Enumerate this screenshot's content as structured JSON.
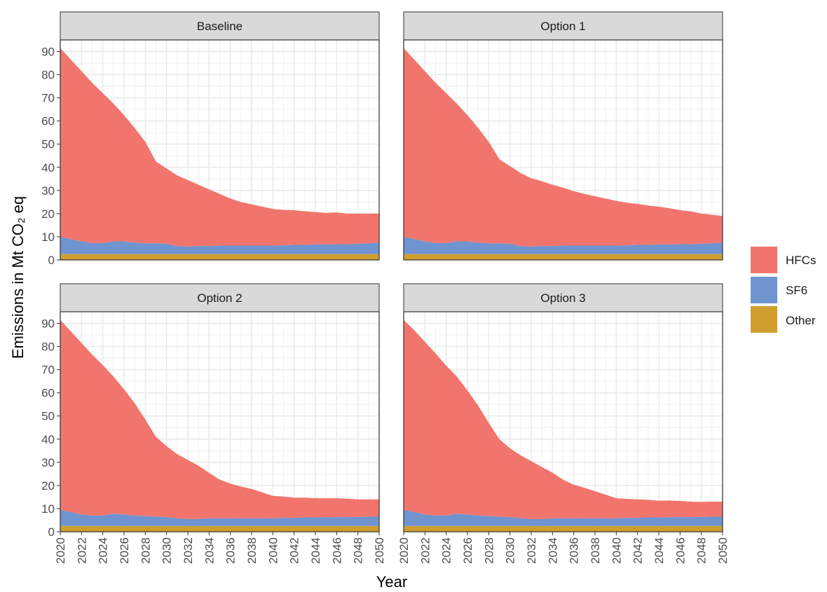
{
  "chart_data": {
    "type": "area",
    "stacked": true,
    "facets": [
      "Baseline",
      "Option 1",
      "Option 2",
      "Option 3"
    ],
    "x": [
      2020,
      2021,
      2022,
      2023,
      2024,
      2025,
      2026,
      2027,
      2028,
      2029,
      2030,
      2031,
      2032,
      2033,
      2034,
      2035,
      2036,
      2037,
      2038,
      2039,
      2040,
      2041,
      2042,
      2043,
      2044,
      2045,
      2046,
      2047,
      2048,
      2049,
      2050
    ],
    "x_ticks": [
      2020,
      2022,
      2024,
      2026,
      2028,
      2030,
      2032,
      2034,
      2036,
      2038,
      2040,
      2042,
      2044,
      2046,
      2048,
      2050
    ],
    "y_ticks": [
      0,
      10,
      20,
      30,
      40,
      50,
      60,
      70,
      80,
      90
    ],
    "xlim": [
      2020,
      2050
    ],
    "ylim": [
      0,
      95
    ],
    "xlabel": "Year",
    "ylabel": "Emissions in Mt CO₂ eq",
    "legend_position": "right",
    "grid": true,
    "colors": {
      "HFCs": "#F2756D",
      "SF6": "#6F94D0",
      "Other": "#D09E2E"
    },
    "panels": [
      {
        "name": "Baseline",
        "series": [
          {
            "name": "Other",
            "values": [
              2.5,
              2.5,
              2.5,
              2.5,
              2.5,
              2.5,
              2.5,
              2.5,
              2.5,
              2.5,
              2.5,
              2.5,
              2.5,
              2.5,
              2.5,
              2.5,
              2.5,
              2.5,
              2.5,
              2.5,
              2.5,
              2.5,
              2.5,
              2.5,
              2.5,
              2.5,
              2.5,
              2.5,
              2.5,
              2.5,
              2.5
            ]
          },
          {
            "name": "SF6",
            "values": [
              7.5,
              6.5,
              5.5,
              4.8,
              4.8,
              5.5,
              5.5,
              5.0,
              4.7,
              4.7,
              4.5,
              3.5,
              3.3,
              3.5,
              3.5,
              3.7,
              3.7,
              3.7,
              3.7,
              3.7,
              3.7,
              3.8,
              4.0,
              4.0,
              4.2,
              4.2,
              4.3,
              4.3,
              4.5,
              4.7,
              5.0
            ]
          },
          {
            "name": "HFCs",
            "values": [
              81.5,
              77.5,
              73.5,
              69.2,
              64.7,
              59.5,
              54.5,
              49.5,
              43.8,
              35.3,
              32.5,
              30.5,
              28.7,
              26.5,
              24.5,
              22.3,
              20.3,
              18.8,
              17.8,
              16.8,
              15.8,
              15.3,
              15.0,
              14.5,
              14.0,
              13.6,
              13.7,
              13.2,
              13.0,
              12.8,
              12.5
            ]
          }
        ]
      },
      {
        "name": "Option 1",
        "series": [
          {
            "name": "Other",
            "values": [
              2.5,
              2.5,
              2.5,
              2.5,
              2.5,
              2.5,
              2.5,
              2.5,
              2.5,
              2.5,
              2.5,
              2.5,
              2.5,
              2.5,
              2.5,
              2.5,
              2.5,
              2.5,
              2.5,
              2.5,
              2.5,
              2.5,
              2.5,
              2.5,
              2.5,
              2.5,
              2.5,
              2.5,
              2.5,
              2.5,
              2.5
            ]
          },
          {
            "name": "SF6",
            "values": [
              7.5,
              6.5,
              5.5,
              4.8,
              4.8,
              5.5,
              5.5,
              5.0,
              4.7,
              4.7,
              4.5,
              3.5,
              3.3,
              3.5,
              3.5,
              3.7,
              3.7,
              3.7,
              3.7,
              3.7,
              3.7,
              3.8,
              4.0,
              4.0,
              4.2,
              4.2,
              4.3,
              4.3,
              4.5,
              4.7,
              5.0
            ]
          },
          {
            "name": "HFCs",
            "values": [
              81.5,
              77.5,
              73.5,
              69.2,
              64.7,
              59.5,
              54.5,
              49.5,
              43.8,
              36.3,
              33.5,
              31.5,
              29.5,
              28.0,
              26.5,
              25.0,
              23.5,
              22.3,
              21.3,
              20.3,
              19.3,
              18.4,
              17.7,
              17.0,
              16.3,
              15.6,
              14.7,
              14.2,
              13.0,
              12.3,
              11.5
            ]
          }
        ]
      },
      {
        "name": "Option 2",
        "series": [
          {
            "name": "Other",
            "values": [
              2.5,
              2.5,
              2.5,
              2.5,
              2.5,
              2.5,
              2.5,
              2.5,
              2.5,
              2.5,
              2.5,
              2.5,
              2.5,
              2.5,
              2.5,
              2.5,
              2.5,
              2.5,
              2.5,
              2.5,
              2.5,
              2.5,
              2.5,
              2.5,
              2.5,
              2.5,
              2.5,
              2.5,
              2.5,
              2.5,
              2.5
            ]
          },
          {
            "name": "SF6",
            "values": [
              7.0,
              6.0,
              5.0,
              4.5,
              4.5,
              5.3,
              5.0,
              4.5,
              4.3,
              4.0,
              3.8,
              3.3,
              3.0,
              3.0,
              3.3,
              3.3,
              3.3,
              3.3,
              3.3,
              3.3,
              3.3,
              3.5,
              3.5,
              3.7,
              3.7,
              3.8,
              3.8,
              3.8,
              3.9,
              4.0,
              4.0
            ]
          },
          {
            "name": "HFCs",
            "values": [
              82.0,
              78.0,
              74.0,
              69.5,
              65.0,
              59.2,
              54.0,
              48.5,
              41.7,
              34.5,
              30.7,
              27.7,
              25.5,
              23.0,
              19.7,
              16.7,
              15.0,
              13.7,
              12.7,
              11.2,
              9.7,
              9.2,
              8.7,
              8.5,
              8.3,
              8.2,
              8.2,
              8.0,
              7.6,
              7.5,
              7.5
            ]
          }
        ]
      },
      {
        "name": "Option 3",
        "series": [
          {
            "name": "Other",
            "values": [
              2.5,
              2.5,
              2.5,
              2.5,
              2.5,
              2.5,
              2.5,
              2.5,
              2.5,
              2.5,
              2.5,
              2.5,
              2.5,
              2.5,
              2.5,
              2.5,
              2.5,
              2.5,
              2.5,
              2.5,
              2.5,
              2.5,
              2.5,
              2.5,
              2.5,
              2.5,
              2.5,
              2.5,
              2.5,
              2.5,
              2.5
            ]
          },
          {
            "name": "SF6",
            "values": [
              7.0,
              6.0,
              5.0,
              4.5,
              4.5,
              5.3,
              5.0,
              4.5,
              4.3,
              4.0,
              3.8,
              3.3,
              3.0,
              3.0,
              3.3,
              3.3,
              3.3,
              3.3,
              3.3,
              3.3,
              3.3,
              3.5,
              3.5,
              3.7,
              3.7,
              3.8,
              3.8,
              3.8,
              3.9,
              4.0,
              4.0
            ]
          },
          {
            "name": "HFCs",
            "values": [
              82.0,
              78.5,
              74.5,
              70.0,
              64.7,
              59.2,
              53.5,
              47.5,
              40.2,
              33.5,
              29.7,
              27.2,
              25.0,
              22.5,
              19.7,
              16.7,
              14.5,
              13.2,
              11.7,
              10.2,
              8.7,
              8.2,
              8.0,
              7.6,
              7.2,
              7.2,
              7.0,
              6.7,
              6.5,
              6.5,
              6.5
            ]
          }
        ]
      }
    ]
  }
}
